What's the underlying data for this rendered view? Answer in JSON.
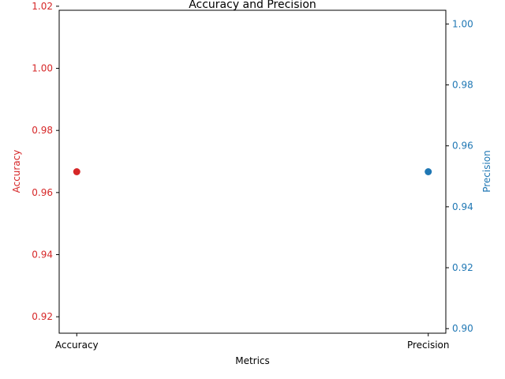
{
  "chart_data": {
    "type": "scatter",
    "title": "Accuracy and Precision",
    "xlabel": "Metrics",
    "categories": [
      "Accuracy",
      "Precision"
    ],
    "series": [
      {
        "name": "Accuracy",
        "axis": "left",
        "color": "#d62728",
        "category": "Accuracy",
        "value": 0.9667
      },
      {
        "name": "Precision",
        "axis": "right",
        "color": "#1f77b4",
        "category": "Precision",
        "value": 0.9515
      }
    ],
    "y_left": {
      "label": "Accuracy",
      "color": "#d62728",
      "range": [
        0.9147,
        1.0187
      ],
      "ticks": [
        "0.92",
        "0.94",
        "0.96",
        "0.98",
        "1.00",
        "1.02"
      ],
      "tick_values": [
        0.92,
        0.94,
        0.96,
        0.98,
        1.0,
        1.02
      ]
    },
    "y_right": {
      "label": "Precision",
      "color": "#1f77b4",
      "range": [
        0.8985,
        1.0045
      ],
      "ticks": [
        "0.90",
        "0.92",
        "0.94",
        "0.96",
        "0.98",
        "1.00"
      ],
      "tick_values": [
        0.9,
        0.92,
        0.94,
        0.96,
        0.98,
        1.0
      ]
    },
    "grid": false,
    "legend": "none"
  }
}
